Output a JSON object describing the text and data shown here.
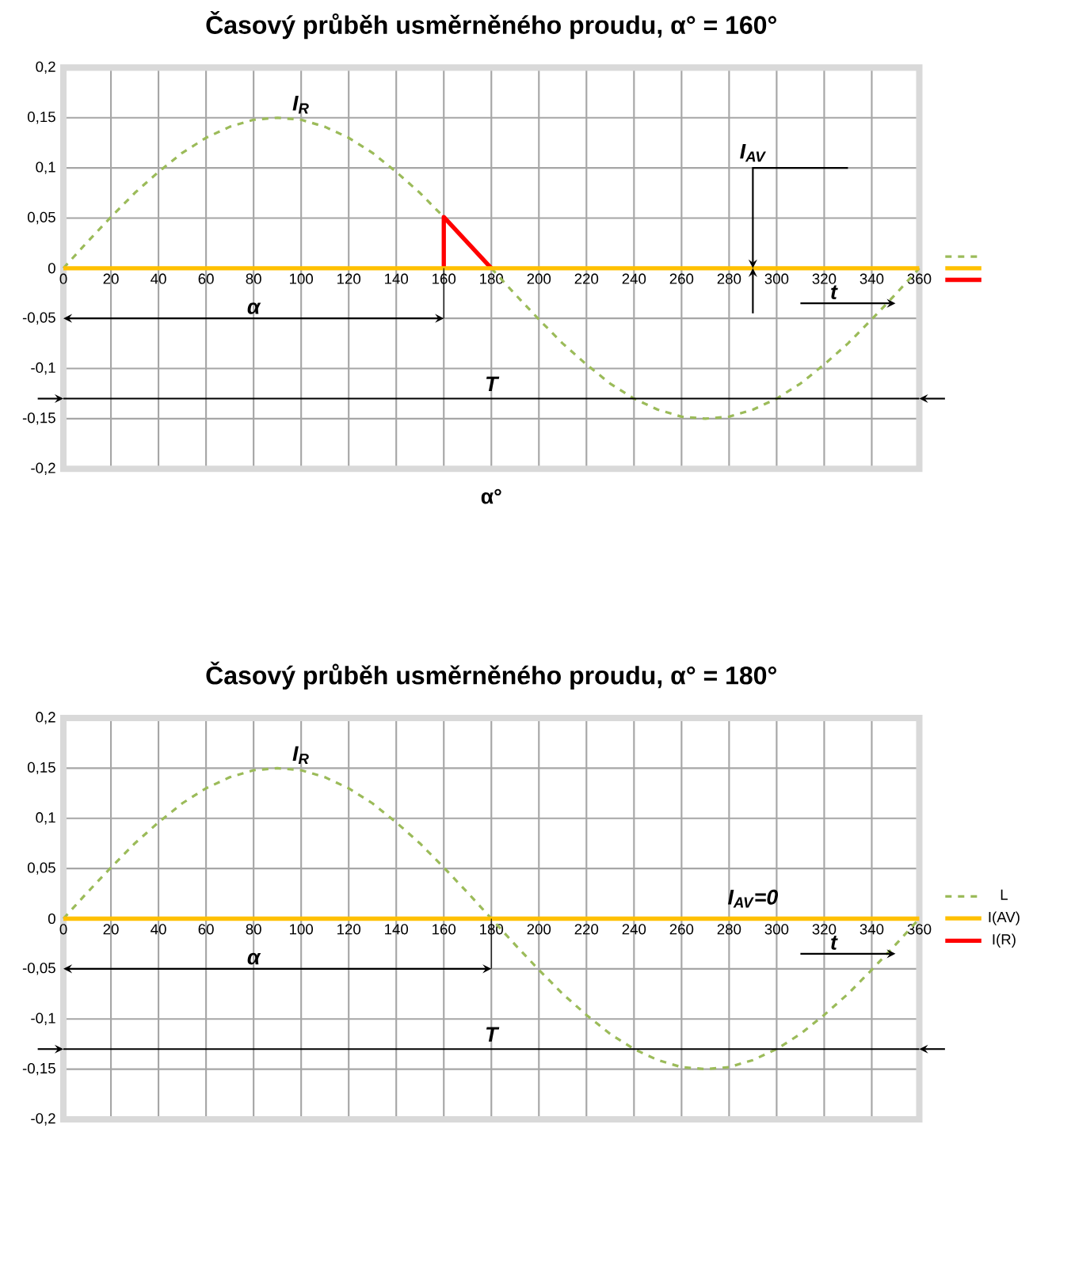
{
  "chart_data": [
    {
      "type": "line",
      "title": "Časový průběh usměrněného proudu, α° = 160°",
      "xlabel": "α°",
      "xlim": [
        0,
        360
      ],
      "xticks": [
        0,
        20,
        40,
        60,
        80,
        100,
        120,
        140,
        160,
        180,
        200,
        220,
        240,
        260,
        280,
        300,
        320,
        340,
        360
      ],
      "ylim": [
        -0.2,
        0.2
      ],
      "yticks": [
        {
          "value": -0.2,
          "label": "-0,2"
        },
        {
          "value": -0.15,
          "label": "-0,15"
        },
        {
          "value": -0.1,
          "label": "-0,1"
        },
        {
          "value": -0.05,
          "label": "-0,05"
        },
        0,
        {
          "value": 0.05,
          "label": "0,05"
        },
        {
          "value": 0.1,
          "label": "0,1"
        },
        {
          "value": 0.15,
          "label": "0,15"
        },
        {
          "value": 0.2,
          "label": "0,2"
        }
      ],
      "grid": true,
      "legend": "right",
      "marker": "none",
      "series": [
        {
          "color": "#9bbb59",
          "line_style": "dashed",
          "x": [
            0,
            10,
            20,
            30,
            40,
            50,
            60,
            70,
            80,
            90,
            100,
            110,
            120,
            130,
            140,
            150,
            160,
            170,
            180,
            190,
            200,
            210,
            220,
            230,
            240,
            250,
            260,
            270,
            280,
            290,
            300,
            310,
            320,
            330,
            340,
            350,
            360
          ],
          "values": [
            0,
            0.026,
            0.051,
            0.075,
            0.096,
            0.115,
            0.13,
            0.141,
            0.148,
            0.15,
            0.148,
            0.141,
            0.13,
            0.115,
            0.096,
            0.075,
            0.051,
            null,
            0,
            -0.026,
            -0.051,
            -0.075,
            -0.096,
            -0.115,
            -0.13,
            -0.141,
            -0.148,
            -0.15,
            -0.148,
            -0.141,
            -0.13,
            -0.115,
            -0.096,
            -0.075,
            -0.051,
            -0.026,
            0
          ]
        },
        {
          "color": "#ffc000",
          "line_style": "solid",
          "x": [
            0,
            360
          ],
          "values": [
            0,
            0
          ]
        },
        {
          "color": "#ff0000",
          "line_style": "solid",
          "x": [
            160,
            160,
            180
          ],
          "values": [
            0,
            0.051,
            0
          ]
        }
      ],
      "annotations": [
        "I$_{R}$",
        "I$_{AV}$",
        "α",
        "t"
      ],
      "ref_lines": [
        {
          "axis": "y",
          "value": -0.13,
          "label": "T",
          "color": "#000000"
        }
      ]
    },
    {
      "type": "line",
      "title": "Časový průběh usměrněného proudu, α° = 180°",
      "xlim": [
        0,
        360
      ],
      "xticks": [
        0,
        20,
        40,
        60,
        80,
        100,
        120,
        140,
        160,
        180,
        200,
        220,
        240,
        260,
        280,
        300,
        320,
        340,
        360
      ],
      "ylim": [
        -0.2,
        0.2
      ],
      "yticks": [
        {
          "value": -0.2,
          "label": "-0,2"
        },
        {
          "value": -0.15,
          "label": "-0,15"
        },
        {
          "value": -0.1,
          "label": "-0,1"
        },
        {
          "value": -0.05,
          "label": "-0,05"
        },
        0,
        {
          "value": 0.05,
          "label": "0,05"
        },
        {
          "value": 0.1,
          "label": "0,1"
        },
        {
          "value": 0.15,
          "label": "0,15"
        },
        {
          "value": 0.2,
          "label": "0,2"
        }
      ],
      "grid": true,
      "legend": "right",
      "marker": "none",
      "series": [
        {
          "name": "L",
          "color": "#9bbb59",
          "line_style": "dashed",
          "x": [
            0,
            10,
            20,
            30,
            40,
            50,
            60,
            70,
            80,
            90,
            100,
            110,
            120,
            130,
            140,
            150,
            160,
            170,
            180,
            190,
            200,
            210,
            220,
            230,
            240,
            250,
            260,
            270,
            280,
            290,
            300,
            310,
            320,
            330,
            340,
            350,
            360
          ],
          "values": [
            0,
            0.026,
            0.051,
            0.075,
            0.096,
            0.115,
            0.13,
            0.141,
            0.148,
            0.15,
            0.148,
            0.141,
            0.13,
            0.115,
            0.096,
            0.075,
            0.051,
            0.026,
            0,
            -0.026,
            -0.051,
            -0.075,
            -0.096,
            -0.115,
            -0.13,
            -0.141,
            -0.148,
            -0.15,
            -0.148,
            -0.141,
            -0.13,
            -0.115,
            -0.096,
            -0.075,
            -0.051,
            -0.026,
            0
          ]
        },
        {
          "name": "I(AV)",
          "color": "#ffc000",
          "line_style": "solid",
          "x": [
            0,
            360
          ],
          "values": [
            0,
            0
          ]
        },
        {
          "name": "I(R)",
          "color": "#ff0000",
          "line_style": "solid"
        }
      ],
      "annotations": [
        "I$_{R}$",
        "I$_{AV}$=0",
        "α",
        "t"
      ],
      "ref_lines": [
        {
          "axis": "y",
          "value": -0.13,
          "label": "T",
          "color": "#000000"
        }
      ]
    }
  ]
}
